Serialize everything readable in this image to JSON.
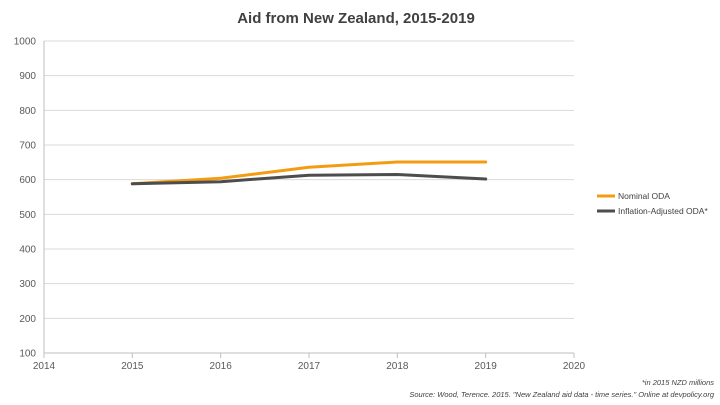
{
  "chart_data": {
    "type": "line",
    "title": "Aid from New Zealand, 2015-2019",
    "xlabel": "",
    "ylabel": "",
    "xlim": [
      2014,
      2020
    ],
    "ylim": [
      100,
      1000
    ],
    "x_ticks": [
      "2014",
      "2015",
      "2016",
      "2017",
      "2018",
      "2019",
      "2020"
    ],
    "y_ticks": [
      "100",
      "200",
      "300",
      "400",
      "500",
      "600",
      "700",
      "800",
      "900",
      "1000"
    ],
    "x": [
      2015,
      2016,
      2017,
      2018,
      2019
    ],
    "series": [
      {
        "name": "Nominal ODA",
        "values": [
          588,
          604,
          636,
          651,
          651
        ],
        "color": "#f39c12"
      },
      {
        "name": "Inflation-Adjusted ODA*",
        "values": [
          588,
          594,
          613,
          615,
          602
        ],
        "color": "#4d4d4d"
      }
    ],
    "grid": true,
    "legend": "right"
  },
  "notes": {
    "unit_note": "*in 2015 NZD millions",
    "source": "Source: Wood, Terence. 2015. \"New Zealand aid data - time series.\" Online at devpolicy.org"
  }
}
